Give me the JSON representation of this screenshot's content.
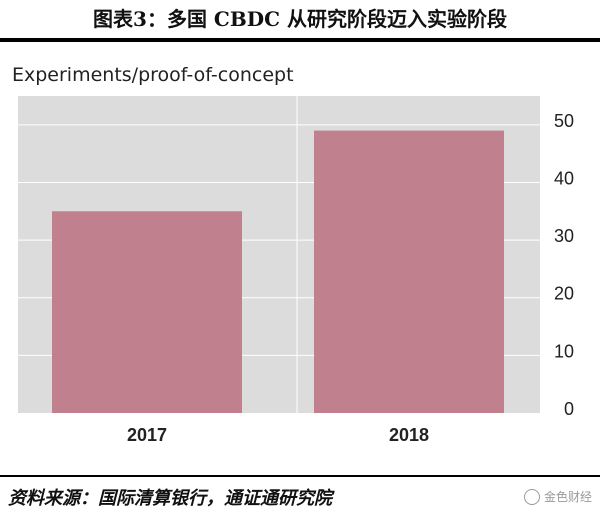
{
  "figure": {
    "title": "图表3：多国 CBDC 从研究阶段迈入实验阶段",
    "source": "资料来源：国际清算银行，通证通研究院",
    "logo_text": "金色财经"
  },
  "chart_data": {
    "type": "bar",
    "title": "Experiments/proof-of-concept",
    "categories": [
      "2017",
      "2018"
    ],
    "values": [
      35,
      49
    ],
    "ylim": [
      0,
      55
    ],
    "yticks": [
      0,
      10,
      20,
      30,
      40,
      50
    ],
    "y_axis_side": "right",
    "grid": true,
    "colors": {
      "bar": "#c0808e",
      "plot_background": "#dcdcdc",
      "gridline": "#ffffff"
    }
  }
}
